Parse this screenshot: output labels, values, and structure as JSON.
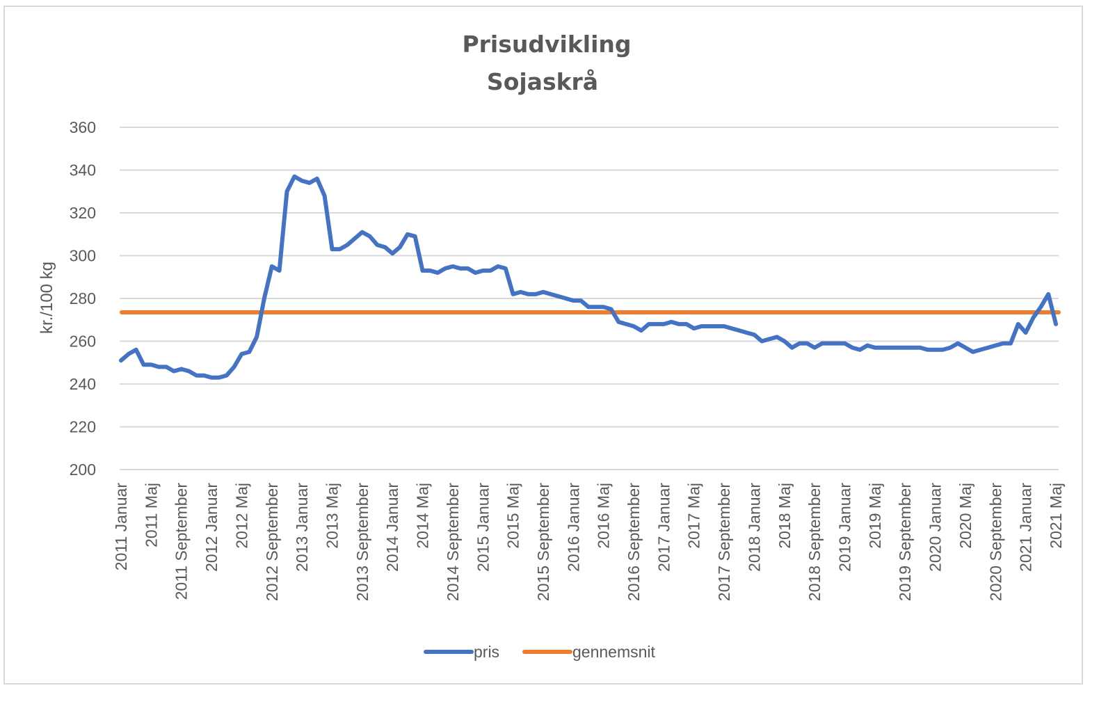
{
  "chart_data": {
    "type": "line",
    "title": [
      "Prisudvikling",
      "Sojaskrå"
    ],
    "xlabel": "",
    "ylabel": "kr./100 kg",
    "ylim": [
      200,
      360
    ],
    "yticks": [
      200,
      220,
      240,
      260,
      280,
      300,
      320,
      340,
      360
    ],
    "grid": true,
    "legend_position": "bottom",
    "x_start": "2011 Januar",
    "x_end": "2021 Maj",
    "xtick_labels": [
      "2011 Januar",
      "2011 Maj",
      "2011 September",
      "2012 Januar",
      "2012 Maj",
      "2012 September",
      "2013 Januar",
      "2013 Maj",
      "2013 September",
      "2014 Januar",
      "2014 Maj",
      "2014 September",
      "2015 Januar",
      "2015 Maj",
      "2015 September",
      "2016 Januar",
      "2016 Maj",
      "2016 September",
      "2017 Januar",
      "2017 Maj",
      "2017 September",
      "2018 Januar",
      "2018 Maj",
      "2018 September",
      "2019 Januar",
      "2019 Maj",
      "2019 September",
      "2020 Januar",
      "2020 Maj",
      "2020 September",
      "2021 Januar",
      "2021 Maj"
    ],
    "series": [
      {
        "name": "pris",
        "color": "#4472c4",
        "values": [
          251,
          254,
          256,
          249,
          249,
          248,
          248,
          246,
          247,
          246,
          244,
          244,
          243,
          243,
          244,
          248,
          254,
          255,
          262,
          280,
          295,
          293,
          330,
          337,
          335,
          334,
          336,
          328,
          303,
          303,
          305,
          308,
          311,
          309,
          305,
          304,
          301,
          304,
          310,
          309,
          293,
          293,
          292,
          294,
          295,
          294,
          294,
          292,
          293,
          293,
          295,
          294,
          282,
          283,
          282,
          282,
          283,
          282,
          281,
          280,
          279,
          279,
          276,
          276,
          276,
          275,
          269,
          268,
          267,
          265,
          268,
          268,
          268,
          269,
          268,
          268,
          266,
          267,
          267,
          267,
          267,
          266,
          265,
          264,
          263,
          260,
          261,
          262,
          260,
          257,
          259,
          259,
          257,
          259,
          259,
          259,
          259,
          257,
          256,
          258,
          257,
          257,
          257,
          257,
          257,
          257,
          257,
          256,
          256,
          256,
          257,
          259,
          257,
          255,
          256,
          257,
          258,
          259,
          259,
          268,
          264,
          271,
          276,
          282,
          268
        ]
      },
      {
        "name": "gennemsnit",
        "color": "#ed7d31",
        "values_constant": 273.5
      }
    ]
  }
}
